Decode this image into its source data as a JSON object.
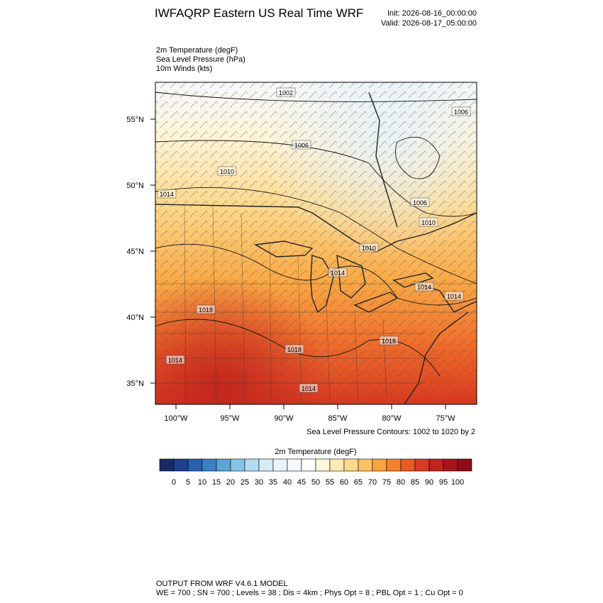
{
  "header": {
    "title": "IWFAQRP Eastern US Real Time WRF",
    "init": "Init: 2026-08-16_00:00:00",
    "valid": "Valid: 2026-08-17_05:00:00"
  },
  "fields": [
    "2m Temperature   (degF)",
    "Sea Level Pressure   (hPa)",
    "10m Winds   (kts)"
  ],
  "map": {
    "lat_ticks": [
      {
        "value": 55,
        "label": "55°N"
      },
      {
        "value": 50,
        "label": "50°N"
      },
      {
        "value": 45,
        "label": "45°N"
      },
      {
        "value": 40,
        "label": "40°N"
      },
      {
        "value": 35,
        "label": "35°N"
      }
    ],
    "lon_ticks": [
      {
        "value": -100,
        "label": "100°W"
      },
      {
        "value": -95,
        "label": "95°W"
      },
      {
        "value": -90,
        "label": "90°W"
      },
      {
        "value": -85,
        "label": "85°W"
      },
      {
        "value": -80,
        "label": "80°W"
      },
      {
        "value": -75,
        "label": "75°W"
      }
    ],
    "contour_labels": [
      "1002",
      "1006",
      "1006",
      "1010",
      "1014",
      "1006",
      "1010",
      "1010",
      "1014",
      "1014",
      "1018",
      "1014",
      "1018",
      "1018",
      "1014",
      "1014"
    ],
    "caption": "Sea Level Pressure Contours: 1002 to 1020 by 2"
  },
  "colorbar": {
    "title": "2m Temperature   (degF)",
    "colors": [
      "#1b2a63",
      "#1e3f8f",
      "#2a5fb0",
      "#3c80c4",
      "#5ea4d6",
      "#88c4e6",
      "#b2dcf2",
      "#d4ecf8",
      "#e8f4fb",
      "#f4f9fc",
      "#ffffff",
      "#fff6dc",
      "#feeab2",
      "#fdd88a",
      "#fcc062",
      "#f9a33e",
      "#f3822c",
      "#ea5a26",
      "#d93a22",
      "#c1221e",
      "#a8141b",
      "#8c0d16"
    ],
    "ticks": [
      0,
      5,
      10,
      15,
      20,
      25,
      30,
      35,
      40,
      45,
      50,
      55,
      60,
      65,
      70,
      75,
      80,
      85,
      90,
      95,
      100
    ]
  },
  "footer": [
    "OUTPUT FROM WRF V4.6.1 MODEL",
    "WE = 700 ; SN = 700 ; Levels = 38 ; Dis = 4km ; Phys Opt = 8 ; PBL Opt = 1 ; Cu Opt = 0"
  ]
}
